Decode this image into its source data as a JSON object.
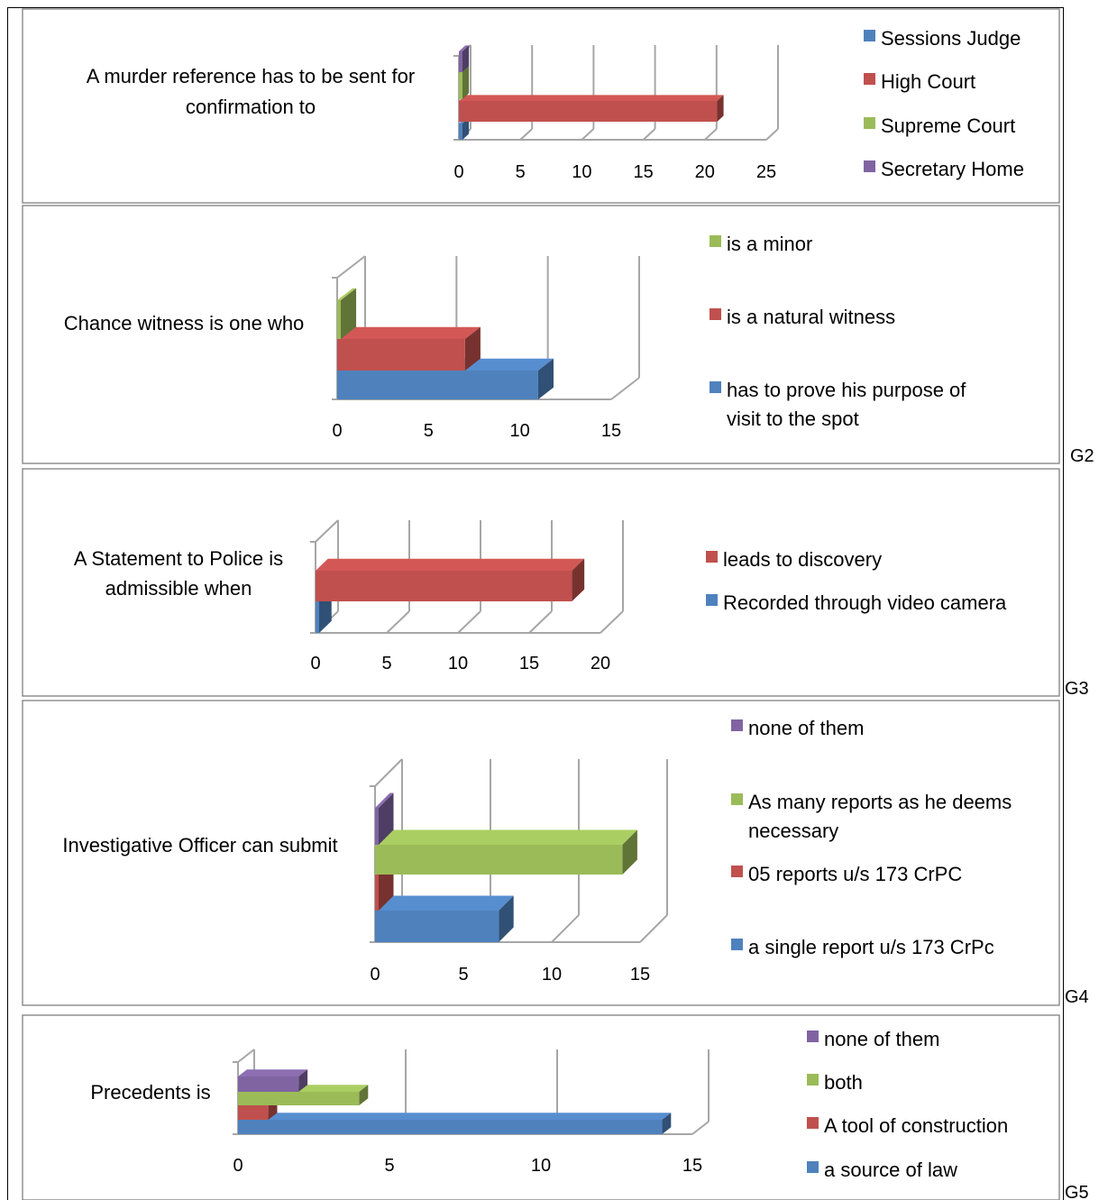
{
  "chart_data": [
    {
      "type": "bar",
      "orientation": "horizontal",
      "style": "3d",
      "question": "A murder reference has to be sent for confirmation to",
      "x_ticks": [
        "0",
        "5",
        "10",
        "15",
        "20",
        "25"
      ],
      "xlim": [
        0,
        25
      ],
      "grid": true,
      "legend_position": "right",
      "series": [
        {
          "name": "Sessions Judge",
          "value": 0,
          "color": "#4f81bd"
        },
        {
          "name": "High Court",
          "value": 21,
          "color": "#c0504d"
        },
        {
          "name": "Supreme Court",
          "value": 0,
          "color": "#9bbb59"
        },
        {
          "name": "Secretary Home",
          "value": 0,
          "color": "#8064a2"
        }
      ]
    },
    {
      "type": "bar",
      "orientation": "horizontal",
      "style": "3d",
      "question": "Chance witness is one who",
      "x_ticks": [
        "0",
        "5",
        "10",
        "15"
      ],
      "xlim": [
        0,
        15
      ],
      "grid": true,
      "legend_position": "right",
      "series": [
        {
          "name": "has to prove his purpose of visit to the spot",
          "value": 11,
          "color": "#4f81bd"
        },
        {
          "name": "is a natural witness",
          "value": 7,
          "color": "#c0504d"
        },
        {
          "name": "is a minor",
          "value": 0,
          "color": "#9bbb59"
        }
      ]
    },
    {
      "type": "bar",
      "orientation": "horizontal",
      "style": "3d",
      "question": "A Statement to Police is admissible when",
      "x_ticks": [
        "0",
        "5",
        "10",
        "15",
        "20"
      ],
      "xlim": [
        0,
        20
      ],
      "grid": true,
      "legend_position": "right",
      "series": [
        {
          "name": "Recorded through video camera",
          "value": 0,
          "color": "#4f81bd"
        },
        {
          "name": "leads to discovery",
          "value": 18,
          "color": "#c0504d"
        }
      ]
    },
    {
      "type": "bar",
      "orientation": "horizontal",
      "style": "3d",
      "question": "Investigative Officer can submit",
      "x_ticks": [
        "0",
        "5",
        "10",
        "15"
      ],
      "xlim": [
        0,
        15
      ],
      "grid": true,
      "legend_position": "right",
      "series": [
        {
          "name": "a single report u/s 173 CrPc",
          "value": 7,
          "color": "#4f81bd"
        },
        {
          "name": "05 reports u/s 173 CrPC",
          "value": 0,
          "color": "#c0504d"
        },
        {
          "name": "As many reports as he deems necessary",
          "value": 14,
          "color": "#9bbb59"
        },
        {
          "name": "none of them",
          "value": 0,
          "color": "#8064a2"
        }
      ]
    },
    {
      "type": "bar",
      "orientation": "horizontal",
      "style": "3d",
      "question": "Precedents is",
      "x_ticks": [
        "0",
        "5",
        "10",
        "15"
      ],
      "xlim": [
        0,
        15
      ],
      "grid": true,
      "legend_position": "right",
      "series": [
        {
          "name": "a source of law",
          "value": 14,
          "color": "#4f81bd"
        },
        {
          "name": "A tool of construction",
          "value": 1,
          "color": "#c0504d"
        },
        {
          "name": "both",
          "value": 4,
          "color": "#9bbb59"
        },
        {
          "name": "none of them",
          "value": 2,
          "color": "#8064a2"
        }
      ]
    }
  ],
  "figure_labels": [
    "G2",
    "G3",
    "G4",
    "G5"
  ]
}
